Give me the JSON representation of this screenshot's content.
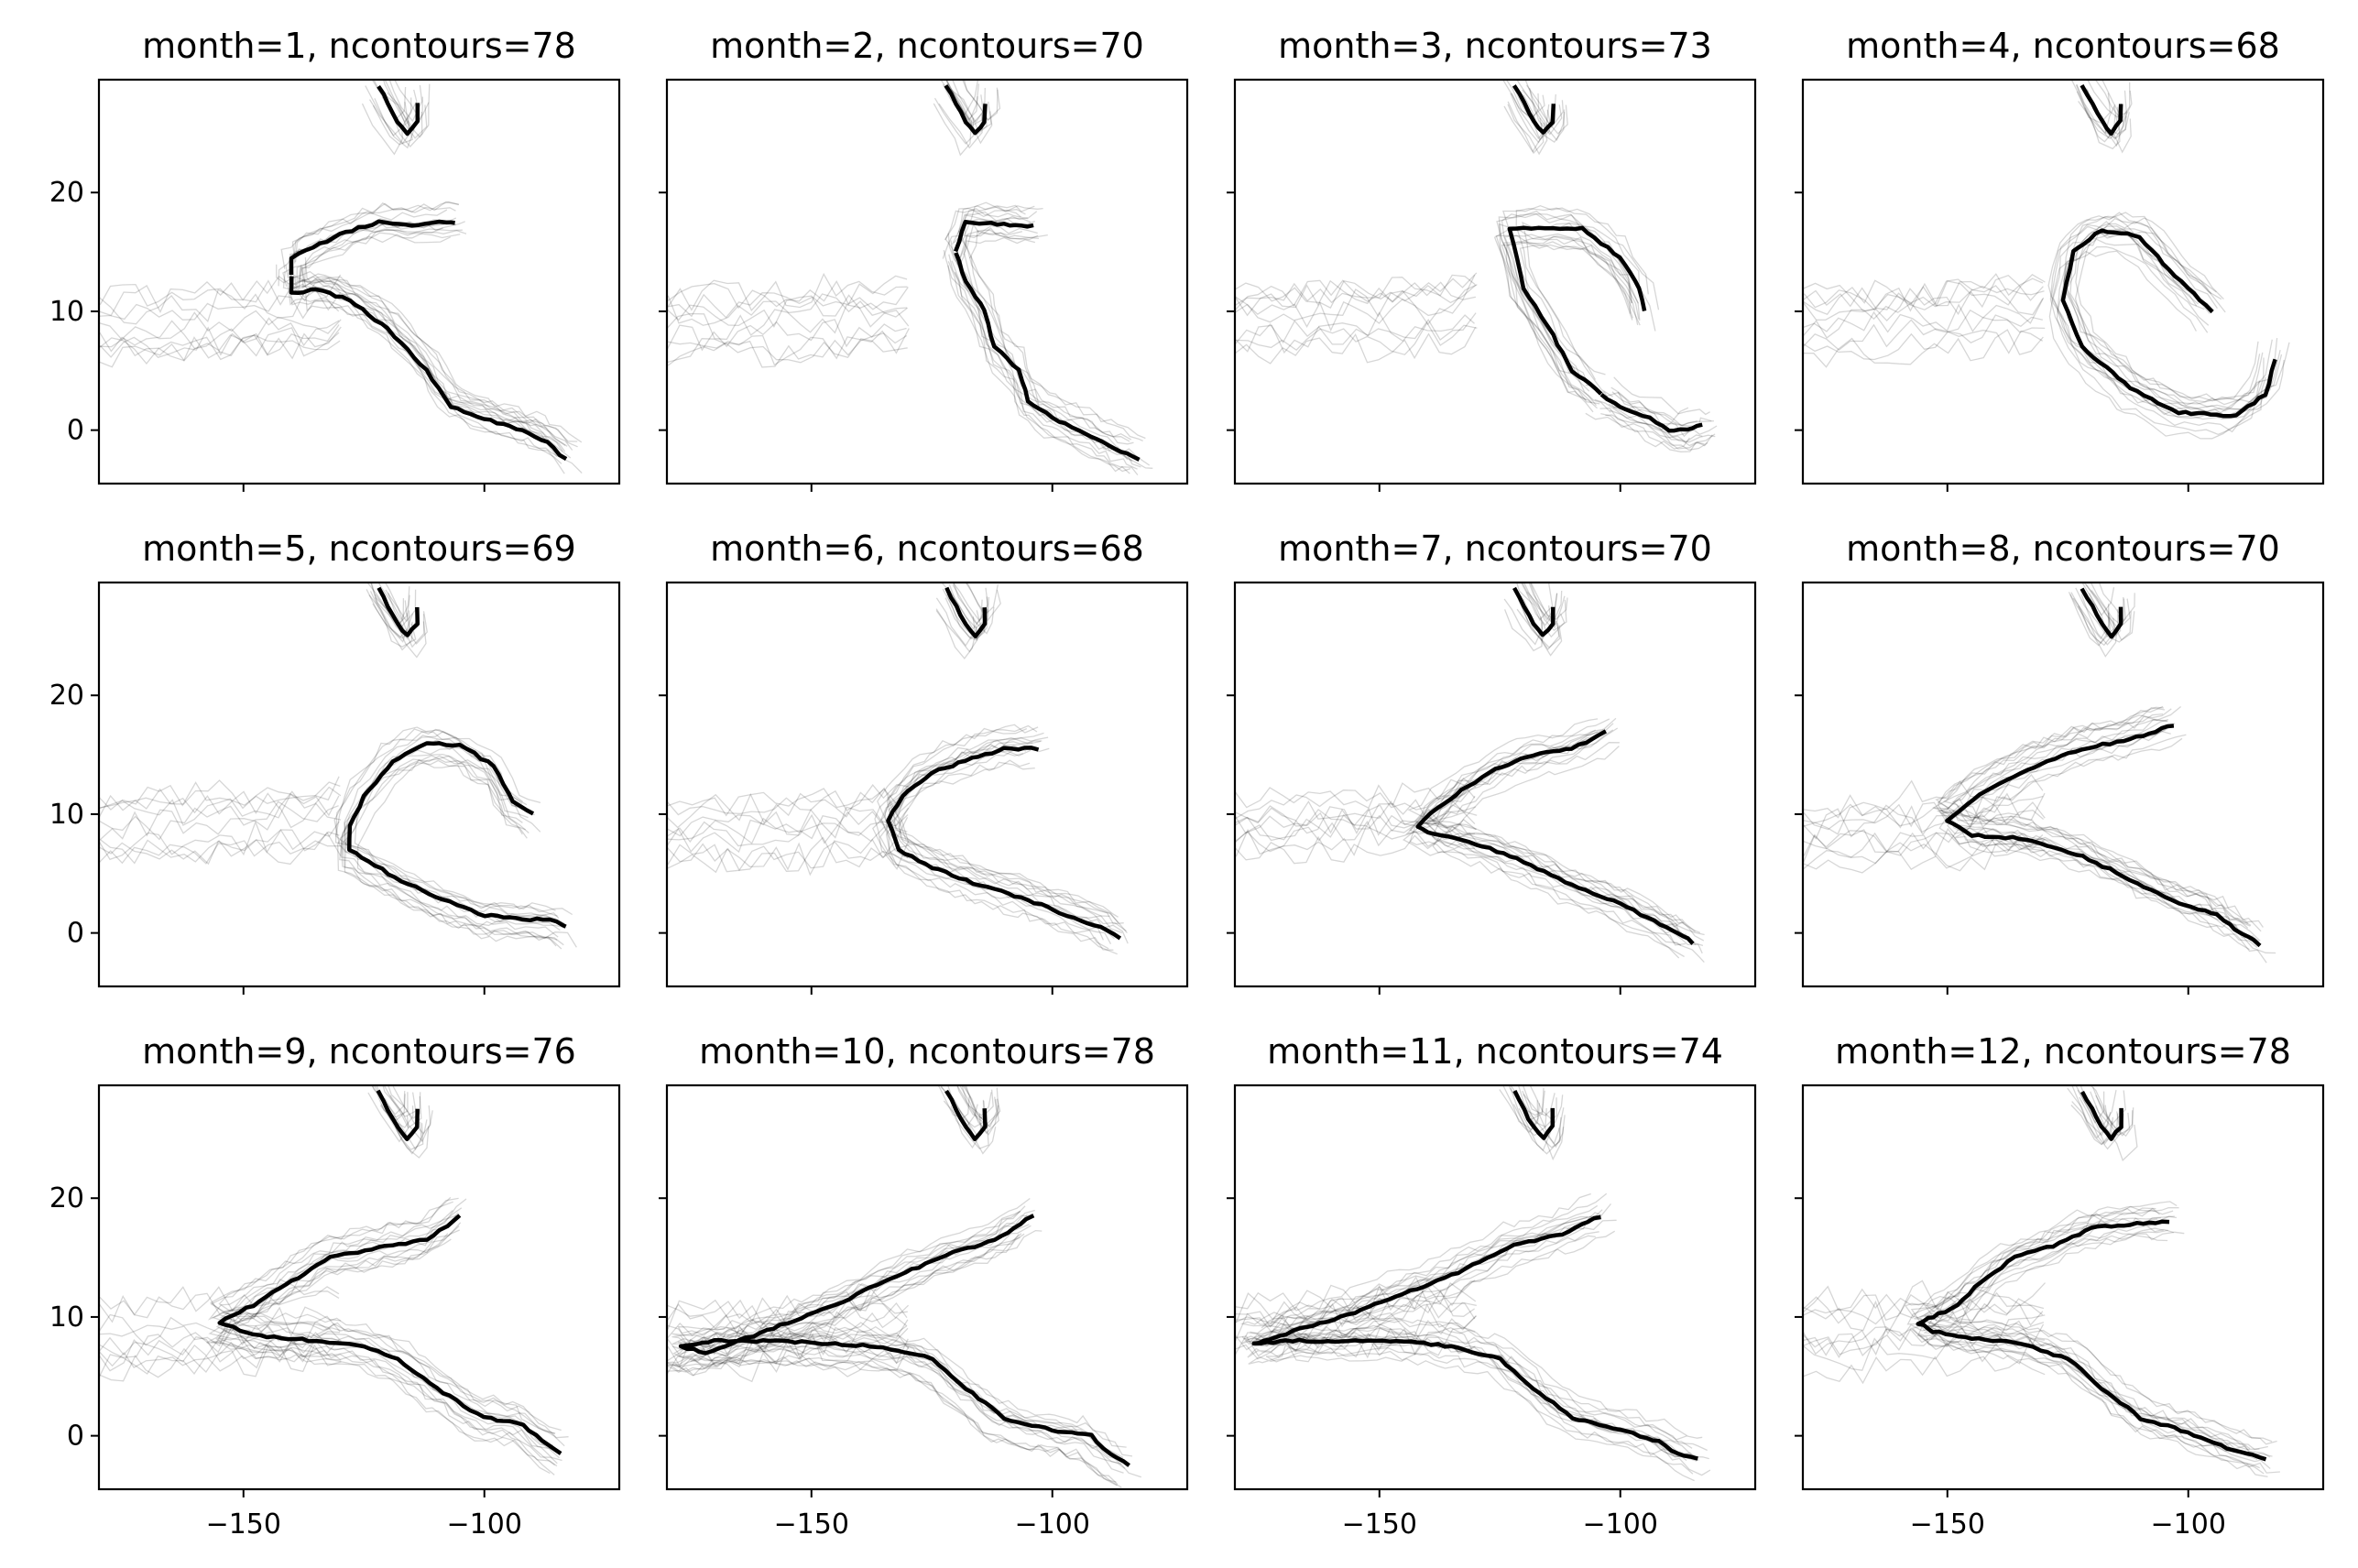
{
  "chart_data": {
    "type": "line",
    "layout": "3x4 small multiples, shared axes",
    "xlim": [
      -180,
      -72
    ],
    "ylim": [
      -4.5,
      29.5
    ],
    "x_ticks": [
      -150,
      -100
    ],
    "y_ticks": [
      0,
      10,
      20
    ],
    "x_tick_labels": [
      "−150",
      "−100"
    ],
    "y_tick_labels": [
      "0",
      "10",
      "20"
    ],
    "xlabel": "",
    "ylabel": "",
    "line_colors": {
      "mean": "#000000",
      "ensemble": "#000000"
    },
    "panels": [
      {
        "title": "month=1, ncontours=78",
        "month": 1,
        "ncontours": 78,
        "mean_contour": [
          [
            -140,
            13
          ],
          [
            -140,
            14.5
          ],
          [
            -130,
            16.5
          ],
          [
            -122,
            17.5
          ],
          [
            -115,
            17.3
          ],
          [
            -108,
            17.5
          ],
          [
            -106,
            17.5
          ]
        ],
        "mean_contour_lower": [
          [
            -140,
            13
          ],
          [
            -140,
            11.5
          ],
          [
            -135,
            11.8
          ],
          [
            -128,
            11
          ],
          [
            -120,
            8.5
          ],
          [
            -112,
            5
          ],
          [
            -107,
            2
          ],
          [
            -100,
            1
          ],
          [
            -92,
            0
          ],
          [
            -87,
            -1
          ],
          [
            -83,
            -2.5
          ]
        ],
        "top_contour": [
          [
            -122,
            29
          ],
          [
            -118,
            26
          ],
          [
            -116,
            25
          ],
          [
            -114,
            26
          ],
          [
            -114,
            27.5
          ]
        ]
      },
      {
        "title": "month=2, ncontours=70",
        "month": 2,
        "ncontours": 70,
        "mean_contour": [
          [
            -120,
            15
          ],
          [
            -118,
            17.5
          ],
          [
            -110,
            17.3
          ],
          [
            -104,
            17.2
          ]
        ],
        "mean_contour_lower": [
          [
            -120,
            15
          ],
          [
            -118,
            12.5
          ],
          [
            -114,
            10
          ],
          [
            -112,
            7
          ],
          [
            -107,
            5
          ],
          [
            -105,
            2.5
          ],
          [
            -100,
            1
          ],
          [
            -92,
            -0.5
          ],
          [
            -87,
            -1.5
          ],
          [
            -82,
            -2.5
          ]
        ],
        "top_contour": [
          [
            -122,
            29
          ],
          [
            -118,
            26
          ],
          [
            -116,
            25
          ],
          [
            -114,
            26
          ],
          [
            -114,
            27.5
          ]
        ]
      },
      {
        "title": "month=3, ncontours=73",
        "month": 3,
        "ncontours": 73,
        "mean_contour": [
          [
            -104,
            3
          ],
          [
            -110,
            5
          ],
          [
            -114,
            8
          ],
          [
            -120,
            12
          ],
          [
            -123,
            17
          ],
          [
            -108,
            17
          ],
          [
            -100,
            14.5
          ],
          [
            -96,
            12
          ],
          [
            -95,
            10
          ]
        ],
        "mean_contour_lower": [
          [
            -104,
            3
          ],
          [
            -100,
            2
          ],
          [
            -94,
            1
          ],
          [
            -90,
            0
          ],
          [
            -86,
            0
          ],
          [
            -83,
            0.5
          ]
        ],
        "top_contour": [
          [
            -122,
            29
          ],
          [
            -118,
            26
          ],
          [
            -116,
            25
          ],
          [
            -114,
            26
          ],
          [
            -114,
            27.5
          ]
        ]
      },
      {
        "title": "month=4, ncontours=68",
        "month": 4,
        "ncontours": 68,
        "mean_contour": [
          [
            -95,
            10
          ],
          [
            -104,
            13.5
          ],
          [
            -110,
            16.3
          ],
          [
            -118,
            16.8
          ],
          [
            -124,
            15
          ],
          [
            -126,
            11
          ],
          [
            -122,
            7
          ],
          [
            -112,
            3.5
          ],
          [
            -102,
            1.5
          ],
          [
            -90,
            1.2
          ],
          [
            -84,
            3
          ],
          [
            -82,
            6
          ]
        ],
        "mean_contour_lower": [],
        "top_contour": [
          [
            -122,
            29
          ],
          [
            -118,
            26
          ],
          [
            -116,
            25
          ],
          [
            -114,
            26
          ],
          [
            -114,
            27.5
          ]
        ]
      },
      {
        "title": "month=5, ncontours=69",
        "month": 5,
        "ncontours": 69,
        "mean_contour": [
          [
            -90,
            10
          ],
          [
            -94,
            11
          ],
          [
            -98,
            14
          ],
          [
            -105,
            15.8
          ],
          [
            -112,
            16
          ],
          [
            -119,
            14.5
          ],
          [
            -125,
            11.5
          ],
          [
            -128,
            9
          ],
          [
            -128,
            7
          ],
          [
            -120,
            5
          ],
          [
            -110,
            3
          ],
          [
            -100,
            1.5
          ],
          [
            -92,
            1.2
          ],
          [
            -85,
            1
          ],
          [
            -83,
            0.5
          ]
        ],
        "mean_contour_lower": [],
        "top_contour": [
          [
            -122,
            29
          ],
          [
            -118,
            26
          ],
          [
            -116,
            25
          ],
          [
            -114,
            26
          ],
          [
            -114,
            27.5
          ]
        ]
      },
      {
        "title": "month=6, ncontours=68",
        "month": 6,
        "ncontours": 68,
        "mean_contour": [
          [
            -103,
            15.5
          ],
          [
            -110,
            15.5
          ],
          [
            -118,
            14.5
          ],
          [
            -125,
            13.5
          ],
          [
            -131,
            11.5
          ],
          [
            -134,
            9.5
          ],
          [
            -132,
            7
          ],
          [
            -125,
            5.5
          ],
          [
            -115,
            4
          ],
          [
            -105,
            2.8
          ],
          [
            -97,
            1.5
          ],
          [
            -90,
            0.5
          ],
          [
            -86,
            -0.5
          ]
        ],
        "mean_contour_lower": [],
        "top_contour": [
          [
            -122,
            29
          ],
          [
            -118,
            26
          ],
          [
            -116,
            25
          ],
          [
            -114,
            26
          ],
          [
            -114,
            27.5
          ]
        ]
      },
      {
        "title": "month=7, ncontours=70",
        "month": 7,
        "ncontours": 70,
        "mean_contour": [
          [
            -103,
            17
          ],
          [
            -110,
            15.5
          ],
          [
            -118,
            15
          ],
          [
            -126,
            13.8
          ],
          [
            -133,
            12
          ],
          [
            -138,
            10.5
          ],
          [
            -142,
            9
          ],
          [
            -140,
            8.5
          ],
          [
            -130,
            7.5
          ],
          [
            -120,
            6
          ],
          [
            -110,
            4
          ],
          [
            -100,
            2.5
          ],
          [
            -93,
            1
          ],
          [
            -88,
            0
          ],
          [
            -85,
            -0.8
          ]
        ],
        "mean_contour_lower": [],
        "top_contour": [
          [
            -122,
            29
          ],
          [
            -118,
            26
          ],
          [
            -116,
            25
          ],
          [
            -114,
            26
          ],
          [
            -114,
            27.5
          ]
        ]
      },
      {
        "title": "month=8, ncontours=70",
        "month": 8,
        "ncontours": 70,
        "mean_contour": [
          [
            -103,
            17.5
          ],
          [
            -112,
            16.3
          ],
          [
            -122,
            15.5
          ],
          [
            -132,
            14
          ],
          [
            -142,
            12
          ],
          [
            -150,
            9.5
          ],
          [
            -145,
            8.2
          ],
          [
            -135,
            8
          ],
          [
            -122,
            6.5
          ],
          [
            -112,
            4.5
          ],
          [
            -102,
            2.5
          ],
          [
            -94,
            1.5
          ],
          [
            -89,
            0
          ],
          [
            -85,
            -1
          ]
        ],
        "mean_contour_lower": [],
        "top_contour": [
          [
            -122,
            29
          ],
          [
            -118,
            26
          ],
          [
            -116,
            25
          ],
          [
            -114,
            26
          ],
          [
            -114,
            27.5
          ]
        ]
      },
      {
        "title": "month=9, ncontours=76",
        "month": 9,
        "ncontours": 76,
        "mean_contour": [
          [
            -105,
            18.5
          ],
          [
            -112,
            16.5
          ],
          [
            -122,
            15.8
          ],
          [
            -132,
            15
          ],
          [
            -140,
            13
          ],
          [
            -148,
            11
          ],
          [
            -155,
            9.5
          ],
          [
            -148,
            8.5
          ],
          [
            -135,
            8
          ],
          [
            -125,
            7.5
          ],
          [
            -118,
            6.5
          ],
          [
            -110,
            4
          ],
          [
            -100,
            1.5
          ],
          [
            -92,
            1
          ],
          [
            -88,
            -0.5
          ],
          [
            -84,
            -1.5
          ]
        ],
        "mean_contour_lower": [],
        "top_contour": [
          [
            -122,
            29
          ],
          [
            -118,
            26
          ],
          [
            -116,
            25
          ],
          [
            -114,
            26
          ],
          [
            -114,
            27.5
          ]
        ]
      },
      {
        "title": "month=10, ncontours=78",
        "month": 10,
        "ncontours": 78,
        "mean_contour": [
          [
            -104,
            18.5
          ],
          [
            -112,
            16.5
          ],
          [
            -122,
            15.2
          ],
          [
            -135,
            13
          ],
          [
            -145,
            11
          ],
          [
            -155,
            9.5
          ],
          [
            -165,
            8
          ],
          [
            -172,
            7
          ],
          [
            -177,
            7.5
          ],
          [
            -170,
            8
          ],
          [
            -160,
            8
          ],
          [
            -148,
            7.8
          ],
          [
            -135,
            7.5
          ],
          [
            -125,
            6.5
          ],
          [
            -118,
            4
          ],
          [
            -110,
            1.5
          ],
          [
            -100,
            0.5
          ],
          [
            -92,
            0
          ],
          [
            -88,
            -1.5
          ],
          [
            -84,
            -2.5
          ]
        ],
        "mean_contour_lower": [],
        "top_contour": [
          [
            -122,
            29
          ],
          [
            -118,
            26
          ],
          [
            -116,
            25
          ],
          [
            -114,
            26
          ],
          [
            -114,
            27.5
          ]
        ]
      },
      {
        "title": "month=11, ncontours=74",
        "month": 11,
        "ncontours": 74,
        "mean_contour": [
          [
            -104,
            18.5
          ],
          [
            -112,
            17
          ],
          [
            -122,
            16
          ],
          [
            -135,
            13.5
          ],
          [
            -148,
            11.5
          ],
          [
            -158,
            10
          ],
          [
            -168,
            8.8
          ],
          [
            -173,
            8
          ],
          [
            -176,
            7.8
          ],
          [
            -168,
            8
          ],
          [
            -155,
            8
          ],
          [
            -145,
            8
          ],
          [
            -135,
            7.5
          ],
          [
            -125,
            6.5
          ],
          [
            -118,
            4
          ],
          [
            -110,
            1.5
          ],
          [
            -100,
            0.5
          ],
          [
            -92,
            -0.5
          ],
          [
            -88,
            -1.5
          ],
          [
            -84,
            -2
          ]
        ],
        "mean_contour_lower": [],
        "top_contour": [
          [
            -122,
            29
          ],
          [
            -118,
            26
          ],
          [
            -116,
            25
          ],
          [
            -114,
            26
          ],
          [
            -114,
            27.5
          ]
        ]
      },
      {
        "title": "month=12, ncontours=78",
        "month": 12,
        "ncontours": 78,
        "mean_contour": [
          [
            -104,
            18
          ],
          [
            -112,
            17.8
          ],
          [
            -120,
            17.5
          ],
          [
            -128,
            16
          ],
          [
            -136,
            15
          ],
          [
            -143,
            13
          ],
          [
            -148,
            11
          ],
          [
            -153,
            10
          ],
          [
            -156,
            9.5
          ],
          [
            -153,
            8.8
          ],
          [
            -145,
            8.2
          ],
          [
            -135,
            7.8
          ],
          [
            -125,
            6.5
          ],
          [
            -118,
            4
          ],
          [
            -110,
            1.5
          ],
          [
            -100,
            0.3
          ],
          [
            -92,
            -1
          ],
          [
            -88,
            -1.5
          ],
          [
            -84,
            -2
          ]
        ],
        "mean_contour_lower": [],
        "top_contour": [
          [
            -122,
            29
          ],
          [
            -118,
            26
          ],
          [
            -116,
            25
          ],
          [
            -114,
            26
          ],
          [
            -114,
            27.5
          ]
        ]
      }
    ]
  }
}
